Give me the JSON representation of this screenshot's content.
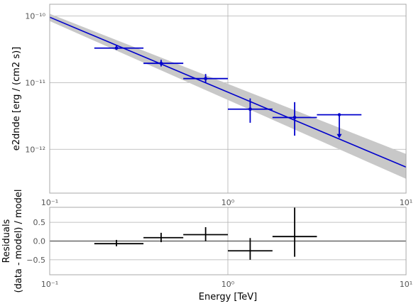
{
  "chart_data": [
    {
      "type": "scatter",
      "panel": "spectrum",
      "xscale": "log",
      "yscale": "log",
      "xlim": [
        0.1,
        10
      ],
      "ylim": [
        2.2e-13,
        1.5e-10
      ],
      "ylabel": "e2dnde [erg / (cm2 s)]",
      "grid": true,
      "x_ticks": [
        0.1,
        1,
        10
      ],
      "x_tick_labels": [
        "10⁻¹",
        "10⁰",
        "10¹"
      ],
      "y_ticks": [
        1e-12,
        1e-11,
        1e-10
      ],
      "y_tick_labels": [
        "10⁻¹²",
        "10⁻¹¹",
        "10⁻¹⁰"
      ],
      "model": {
        "line": [
          [
            0.1,
            9.6e-11
          ],
          [
            10,
            5.4e-13
          ]
        ],
        "band_upper": [
          [
            0.1,
            1.08e-10
          ],
          [
            10,
            8.5e-13
          ]
        ],
        "band_lower": [
          [
            0.1,
            8.4e-11
          ],
          [
            10,
            3.6e-13
          ]
        ],
        "line_color": "#0000cc",
        "band_color": "#c8c8c8"
      },
      "points": [
        {
          "x": 0.237,
          "xmin": 0.178,
          "xmax": 0.336,
          "y": 3.3e-11,
          "ylo": 3.1e-11,
          "yhi": 3.6e-11
        },
        {
          "x": 0.422,
          "xmin": 0.336,
          "xmax": 0.562,
          "y": 1.95e-11,
          "ylo": 1.75e-11,
          "yhi": 2.2e-11
        },
        {
          "x": 0.75,
          "xmin": 0.562,
          "xmax": 1.0,
          "y": 1.15e-11,
          "ylo": 1e-11,
          "yhi": 1.35e-11
        },
        {
          "x": 1.334,
          "xmin": 1.0,
          "xmax": 1.78,
          "y": 4e-12,
          "ylo": 2.5e-12,
          "yhi": 5.8e-12
        },
        {
          "x": 2.37,
          "xmin": 1.78,
          "xmax": 3.16,
          "y": 3e-12,
          "ylo": 1.6e-12,
          "yhi": 5.1e-12
        }
      ],
      "upper_limits": [
        {
          "x": 4.22,
          "xmin": 3.16,
          "xmax": 5.62,
          "y": 3.3e-12,
          "arrow_to": 1.5e-12
        }
      ],
      "point_color": "#0000cc"
    },
    {
      "type": "scatter",
      "panel": "residuals",
      "xscale": "log",
      "xlim": [
        0.1,
        10
      ],
      "ylim": [
        -0.9,
        0.9
      ],
      "xlabel": "Energy [TeV]",
      "ylabel_lines": [
        "Residuals",
        "(data - model) / model"
      ],
      "grid": true,
      "x_ticks": [
        0.1,
        1,
        10
      ],
      "x_tick_labels": [
        "10⁻¹",
        "10⁰",
        "10¹"
      ],
      "y_ticks": [
        -0.5,
        0,
        0.5
      ],
      "y_tick_labels": [
        "−0.5",
        "0.0",
        "0.5"
      ],
      "zero_line": 0,
      "points": [
        {
          "x": 0.237,
          "xmin": 0.178,
          "xmax": 0.336,
          "y": -0.07,
          "ylo": -0.14,
          "yhi": 0.03
        },
        {
          "x": 0.422,
          "xmin": 0.336,
          "xmax": 0.562,
          "y": 0.09,
          "ylo": -0.03,
          "yhi": 0.22
        },
        {
          "x": 0.75,
          "xmin": 0.562,
          "xmax": 1.0,
          "y": 0.17,
          "ylo": -0.01,
          "yhi": 0.37
        },
        {
          "x": 1.334,
          "xmin": 1.0,
          "xmax": 1.78,
          "y": -0.26,
          "ylo": -0.5,
          "yhi": 0.08
        },
        {
          "x": 2.37,
          "xmin": 1.78,
          "xmax": 3.16,
          "y": 0.12,
          "ylo": -0.42,
          "yhi": 0.9
        }
      ],
      "point_color": "#000000"
    }
  ]
}
